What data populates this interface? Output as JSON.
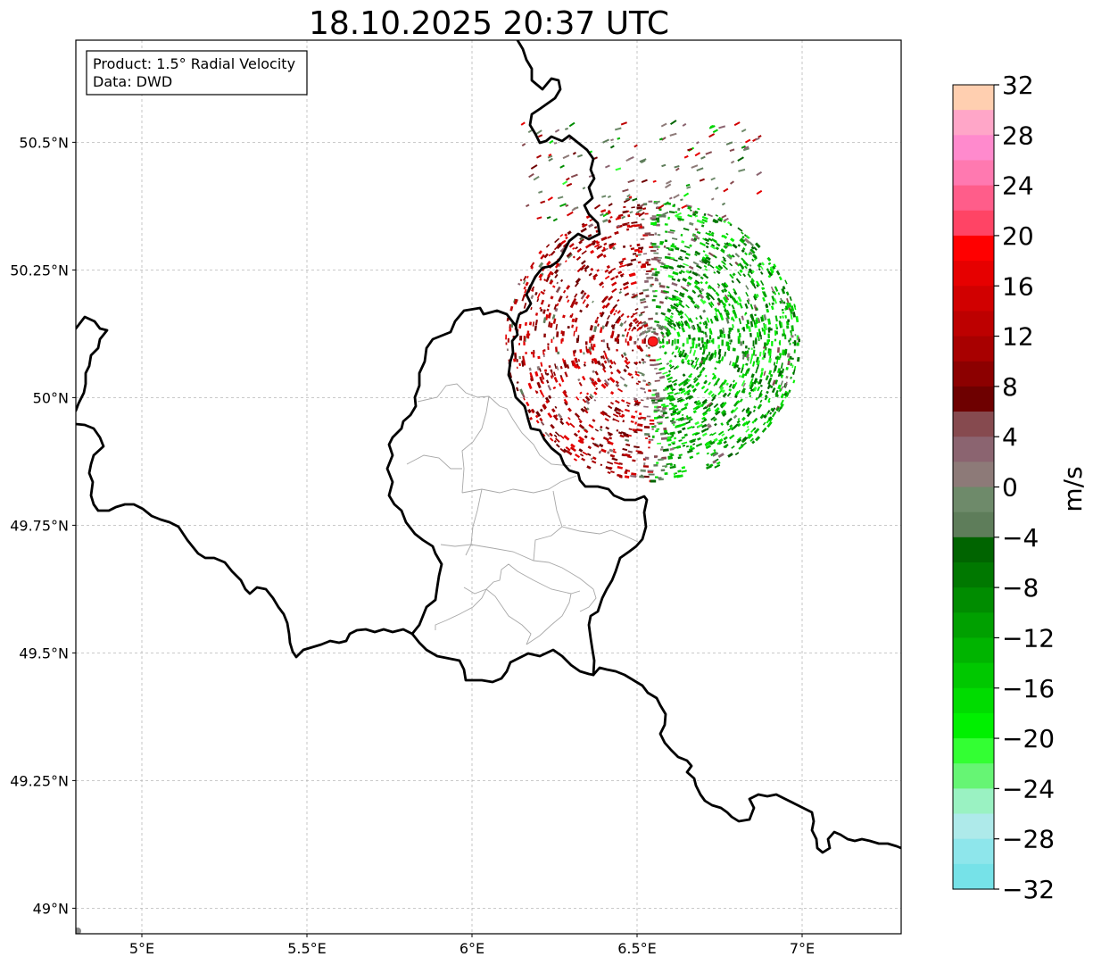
{
  "title": "18.10.2025 20:37 UTC",
  "info_box": {
    "line1": "Product: 1.5° Radial Velocity",
    "line2": "Data: DWD"
  },
  "map": {
    "lon_range": [
      4.8,
      7.3
    ],
    "lat_range": [
      48.95,
      50.7
    ],
    "x_ticks": [
      {
        "value": 5.0,
        "label": "5°E"
      },
      {
        "value": 5.5,
        "label": "5.5°E"
      },
      {
        "value": 6.0,
        "label": "6°E"
      },
      {
        "value": 6.5,
        "label": "6.5°E"
      },
      {
        "value": 7.0,
        "label": "7°E"
      }
    ],
    "y_ticks": [
      {
        "value": 49.0,
        "label": "49°N"
      },
      {
        "value": 49.25,
        "label": "49.25°N"
      },
      {
        "value": 49.5,
        "label": "49.5°N"
      },
      {
        "value": 49.75,
        "label": "49.75°N"
      },
      {
        "value": 50.0,
        "label": "50°N"
      },
      {
        "value": 50.25,
        "label": "50.25°N"
      },
      {
        "value": 50.5,
        "label": "50.5°N"
      }
    ],
    "radar_site": {
      "lon": 6.548,
      "lat": 50.11,
      "color": "#ff1a1a"
    }
  },
  "colorbar": {
    "label": "m/s",
    "min": -32,
    "max": 32,
    "tick_values": [
      32,
      28,
      24,
      20,
      16,
      12,
      8,
      4,
      0,
      -4,
      -8,
      -12,
      -16,
      -20,
      -24,
      -28,
      -32
    ],
    "tick_labels": [
      "32",
      "28",
      "24",
      "20",
      "16",
      "12",
      "8",
      "4",
      "0",
      "−4",
      "−8",
      "−12",
      "−16",
      "−20",
      "−24",
      "−28",
      "−32"
    ],
    "colors_top_to_bottom": [
      "#ffcfb0",
      "#ffa6c8",
      "#ff8acd",
      "#ff79b0",
      "#ff5d8a",
      "#ff4465",
      "#ff0000",
      "#e60000",
      "#d10000",
      "#bd0000",
      "#a80000",
      "#8c0000",
      "#6e0000",
      "#864a4f",
      "#8b6470",
      "#8d7a78",
      "#6e8a6a",
      "#5e7d5a",
      "#006400",
      "#007800",
      "#008c00",
      "#00a000",
      "#00b400",
      "#00c800",
      "#00dc00",
      "#00f000",
      "#33ff33",
      "#66f574",
      "#9af2c2",
      "#aeeaea",
      "#8ee6eb",
      "#76e2e8"
    ]
  },
  "chart_data": {
    "type": "map",
    "title": "18.10.2025 20:37 UTC",
    "product": "Product: 1.5° Radial Velocity",
    "source": "Data: DWD",
    "xlabel": "",
    "ylabel": "",
    "xlim": [
      4.8,
      7.3
    ],
    "ylim": [
      48.95,
      50.7
    ],
    "colorbar_label": "m/s",
    "colorbar_range": [
      -32,
      32
    ],
    "radar_site": {
      "lon": 6.548,
      "lat": 50.11
    },
    "echo_pattern": [
      {
        "region": "west/north-west of radar",
        "velocity_sign": "positive",
        "approx_range_ms": [
          8,
          16
        ]
      },
      {
        "region": "east/south-east of radar",
        "velocity_sign": "negative",
        "approx_range_ms": [
          -20,
          -8
        ]
      }
    ]
  }
}
